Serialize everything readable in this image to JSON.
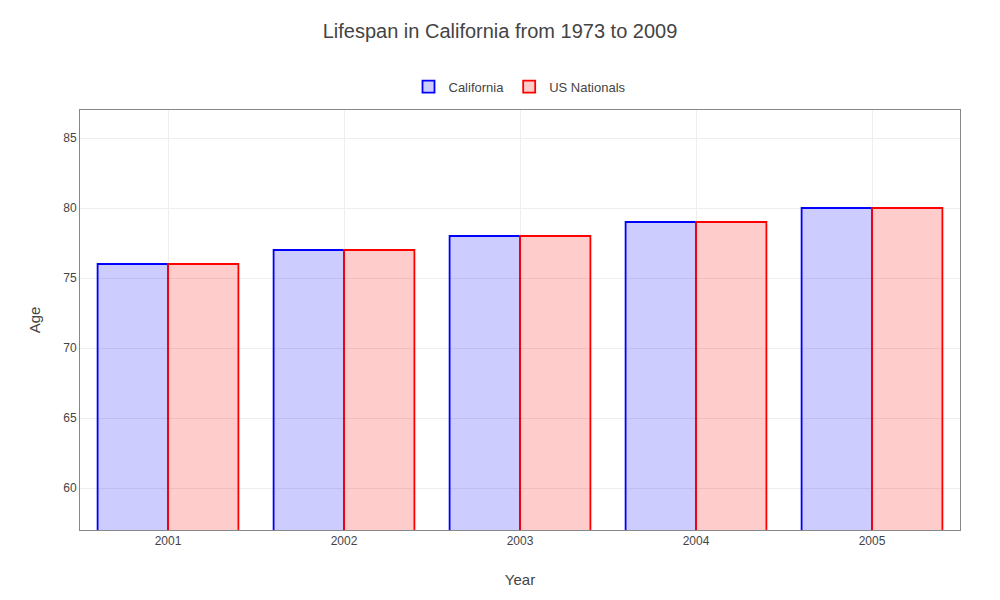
{
  "chart_data": {
    "type": "bar",
    "title": "Lifespan in California from 1973 to 2009",
    "xlabel": "Year",
    "ylabel": "Age",
    "categories": [
      2001,
      2002,
      2003,
      2004,
      2005
    ],
    "series": [
      {
        "name": "California",
        "color": "#0000ff",
        "values": [
          76,
          77,
          78,
          79,
          80
        ]
      },
      {
        "name": "US Nationals",
        "color": "#ff0000",
        "values": [
          76,
          77,
          78,
          79,
          80
        ]
      }
    ],
    "ylim": [
      57,
      87
    ],
    "yticks": [
      60,
      65,
      70,
      75,
      80,
      85
    ],
    "grid": true,
    "legend": "top"
  }
}
